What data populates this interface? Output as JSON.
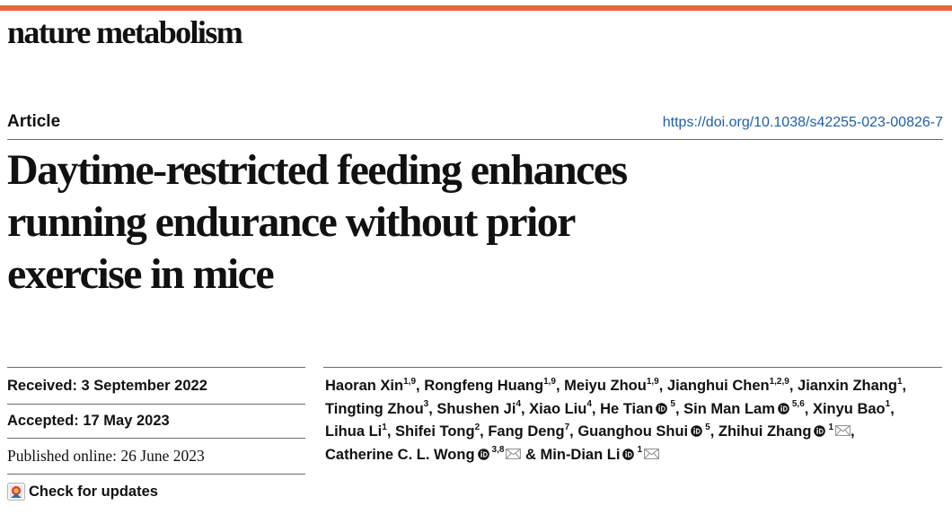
{
  "journal": {
    "name": "nature metabolism"
  },
  "colors": {
    "accent_bar": "#e8643c",
    "doi_link": "#1d5fa8",
    "orcid": "#111111"
  },
  "article_type": "Article",
  "doi": "https://doi.org/10.1038/s42255-023-00826-7",
  "title_lines": [
    "Daytime-restricted feeding enhances",
    "running endurance without prior",
    "exercise in mice"
  ],
  "dates": {
    "received": "Received: 3 September 2022",
    "accepted": "Accepted: 17 May 2023",
    "published": "Published online: 26 June 2023"
  },
  "check_updates_label": "Check for updates",
  "icons": {
    "orcid": "orcid-icon",
    "mail": "mail-icon",
    "updates": "check-for-updates-icon"
  },
  "authors": [
    {
      "name": "Haoran Xin",
      "aff": "1,9",
      "orcid": false,
      "mail": false
    },
    {
      "name": "Rongfeng Huang",
      "aff": "1,9",
      "orcid": false,
      "mail": false
    },
    {
      "name": "Meiyu Zhou",
      "aff": "1,9",
      "orcid": false,
      "mail": false
    },
    {
      "name": "Jianghui Chen",
      "aff": "1,2,9",
      "orcid": false,
      "mail": false
    },
    {
      "name": "Jianxin Zhang",
      "aff": "1",
      "orcid": false,
      "mail": false
    },
    {
      "name": "Tingting Zhou",
      "aff": "3",
      "orcid": false,
      "mail": false
    },
    {
      "name": "Shushen Ji",
      "aff": "4",
      "orcid": false,
      "mail": false
    },
    {
      "name": "Xiao Liu",
      "aff": "4",
      "orcid": false,
      "mail": false
    },
    {
      "name": "He Tian",
      "aff": "5",
      "orcid": true,
      "mail": false
    },
    {
      "name": "Sin Man Lam",
      "aff": "5,6",
      "orcid": true,
      "mail": false
    },
    {
      "name": "Xinyu Bao",
      "aff": "1",
      "orcid": false,
      "mail": false
    },
    {
      "name": "Lihua Li",
      "aff": "1",
      "orcid": false,
      "mail": false
    },
    {
      "name": "Shifei Tong",
      "aff": "2",
      "orcid": false,
      "mail": false
    },
    {
      "name": "Fang Deng",
      "aff": "7",
      "orcid": false,
      "mail": false
    },
    {
      "name": "Guanghou Shui",
      "aff": "5",
      "orcid": true,
      "mail": false
    },
    {
      "name": "Zhihui Zhang",
      "aff": "1",
      "orcid": true,
      "mail": true
    },
    {
      "name": "Catherine C. L. Wong",
      "aff": "3,8",
      "orcid": true,
      "mail": true
    },
    {
      "name": "Min-Dian Li",
      "aff": "1",
      "orcid": true,
      "mail": true,
      "prefix": "& "
    }
  ]
}
